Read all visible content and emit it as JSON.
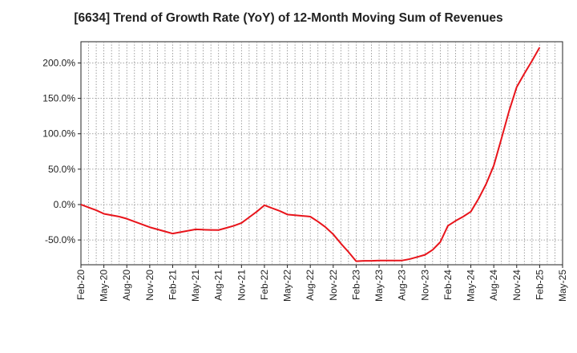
{
  "chart_data": {
    "type": "line",
    "title": "[6634]  Trend of Growth Rate (YoY) of 12-Month Moving Sum of Revenues",
    "xlabel": "",
    "ylabel": "",
    "x_tick_labels": [
      "Feb-20",
      "May-20",
      "Aug-20",
      "Nov-20",
      "Feb-21",
      "May-21",
      "Aug-21",
      "Nov-21",
      "Feb-22",
      "May-22",
      "Aug-22",
      "Nov-22",
      "Feb-23",
      "May-23",
      "Aug-23",
      "Nov-23",
      "Feb-24",
      "May-24",
      "Aug-24",
      "Nov-24",
      "Feb-25",
      "May-25"
    ],
    "y_ticks": [
      -50,
      0,
      50,
      100,
      150,
      200
    ],
    "y_tick_labels": [
      "-50.0%",
      "0.0%",
      "50.0%",
      "100.0%",
      "150.0%",
      "200.0%"
    ],
    "ylim": [
      -85,
      230
    ],
    "grid": true,
    "line_color": "#e8141b",
    "series": [
      {
        "x": [
          "Feb-20",
          "Mar-20",
          "Apr-20",
          "May-20",
          "Jun-20",
          "Jul-20",
          "Aug-20",
          "Sep-20",
          "Oct-20",
          "Nov-20",
          "Dec-20",
          "Jan-21",
          "Feb-21",
          "Mar-21",
          "Apr-21",
          "May-21",
          "Jun-21",
          "Jul-21",
          "Aug-21",
          "Sep-21",
          "Oct-21",
          "Nov-21",
          "Dec-21",
          "Jan-22",
          "Feb-22",
          "Mar-22",
          "Apr-22",
          "May-22",
          "Jun-22",
          "Jul-22",
          "Aug-22",
          "Sep-22",
          "Oct-22",
          "Nov-22",
          "Dec-22",
          "Jan-23",
          "Feb-23",
          "Mar-23",
          "Apr-23",
          "May-23",
          "Jun-23",
          "Jul-23",
          "Aug-23",
          "Sep-23",
          "Oct-23",
          "Nov-23",
          "Dec-23",
          "Jan-24",
          "Feb-24",
          "Mar-24",
          "Apr-24",
          "May-24",
          "Jun-24",
          "Jul-24",
          "Aug-24",
          "Sep-24",
          "Oct-24",
          "Nov-24",
          "Dec-24",
          "Jan-25",
          "Feb-25"
        ],
        "values": [
          0,
          -4,
          -8,
          -13,
          -15,
          -17,
          -20,
          -24,
          -28,
          -32,
          -35,
          -38,
          -41,
          -39,
          -37,
          -35,
          -35.5,
          -35.8,
          -36,
          -33,
          -30,
          -26,
          -18,
          -10,
          -1,
          -5,
          -9,
          -14,
          -15,
          -16,
          -17,
          -24,
          -32,
          -42,
          -55,
          -67,
          -80,
          -79.5,
          -79.5,
          -79,
          -79,
          -79,
          -79,
          -77,
          -74,
          -71,
          -64,
          -53,
          -30,
          -23,
          -17,
          -10,
          8,
          29,
          55,
          93,
          132,
          166,
          185,
          203,
          222
        ]
      }
    ]
  }
}
